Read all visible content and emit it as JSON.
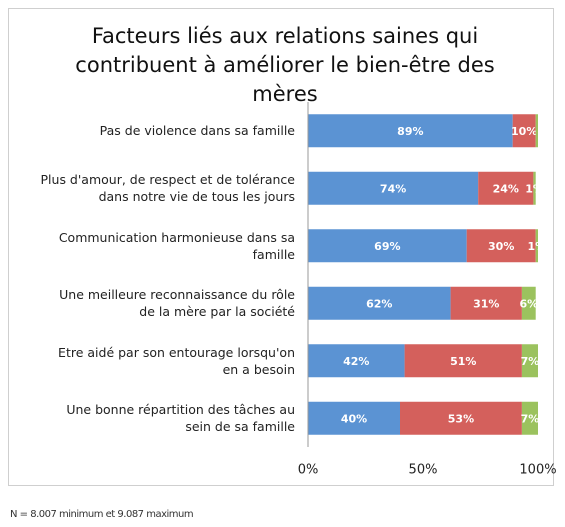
{
  "chart_data": {
    "type": "bar",
    "orientation": "horizontal",
    "stacked": true,
    "title": "Facteurs liés aux relations saines qui contribuent à améliorer le bien-être des mères",
    "categories": [
      "Pas de violence dans sa famille",
      "Plus d'amour, de respect et de tolérance dans notre vie de tous les jours",
      "Communication harmonieuse dans sa famille",
      "Une meilleure reconnaissance du rôle de la mère par la société",
      "Etre aidé par son entourage lorsqu'on en a besoin",
      "Une bonne répartition des tâches au sein de sa famille"
    ],
    "series": [
      {
        "color": "#5b93d3",
        "values": [
          89,
          74,
          69,
          62,
          42,
          40
        ],
        "value_labels": [
          "89%",
          "74%",
          "69%",
          "62%",
          "42%",
          "40%"
        ]
      },
      {
        "color": "#d4605c",
        "values": [
          10,
          24,
          30,
          31,
          51,
          53
        ],
        "value_labels": [
          "10%",
          "24%",
          "30%",
          "31%",
          "51%",
          "53%"
        ]
      },
      {
        "color": "#9bc25e",
        "values": [
          1,
          1,
          1,
          6,
          7,
          7
        ],
        "value_labels": [
          null,
          "1%",
          "1%",
          "6%",
          "7%",
          "7%"
        ]
      }
    ],
    "xlim": [
      0,
      100
    ],
    "xticks": [
      {
        "value": 0,
        "label": "0%"
      },
      {
        "value": 50,
        "label": "50%"
      },
      {
        "value": 100,
        "label": "100%"
      }
    ],
    "footnote": "N = 8.007 minimum et 9.087 maximum"
  }
}
